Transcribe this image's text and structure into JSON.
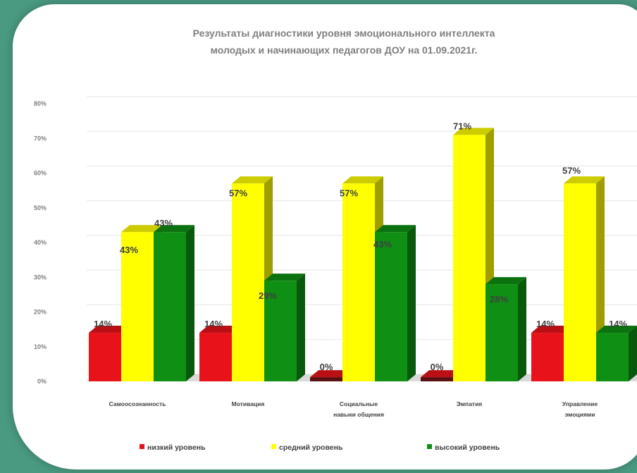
{
  "colors": {
    "background": "#4a9a82",
    "low": "#e8131a",
    "mid": "#ffff00",
    "high": "#0f8f14"
  },
  "chart_data": {
    "type": "bar",
    "title": "Результаты диагностики уровня эмоционального интеллекта молодых и начинающих педагогов ДОУ на 01.09.2021г.",
    "title_lines": [
      "Результаты диагностики уровня эмоционального интеллекта",
      "молодых и начинающих педагогов ДОУ на 01.09.2021г."
    ],
    "categories": [
      "Самоосознанность",
      "Мотивация",
      "Социальные навыки общения",
      "Эмпатия",
      "Управление эмоциями"
    ],
    "category_lines": [
      [
        "Самоосознанность"
      ],
      [
        "Мотивация"
      ],
      [
        "Социальные",
        "навыки общения"
      ],
      [
        "Эмпатия"
      ],
      [
        "Управление",
        "эмоциями"
      ]
    ],
    "series": [
      {
        "name": "низкий уровень",
        "values": [
          14,
          14,
          0,
          0,
          14
        ],
        "labels": [
          "14%",
          "14%",
          "0%",
          "0%",
          "14%"
        ]
      },
      {
        "name": "средний уровень",
        "values": [
          43,
          57,
          57,
          71,
          57
        ],
        "labels": [
          "43%",
          "57%",
          "57%",
          "71%",
          "57%"
        ]
      },
      {
        "name": "высокий уровень",
        "values": [
          43,
          29,
          43,
          28,
          14
        ],
        "labels": [
          "43%",
          "29%",
          "43%",
          "28%",
          "14%"
        ]
      }
    ],
    "y_ticks": [
      "0%",
      "10%",
      "20%",
      "30%",
      "40%",
      "50%",
      "60%",
      "70%",
      "80%"
    ],
    "ylim": [
      0,
      80
    ],
    "grid": true,
    "legend_position": "bottom",
    "style": "3d-column"
  }
}
